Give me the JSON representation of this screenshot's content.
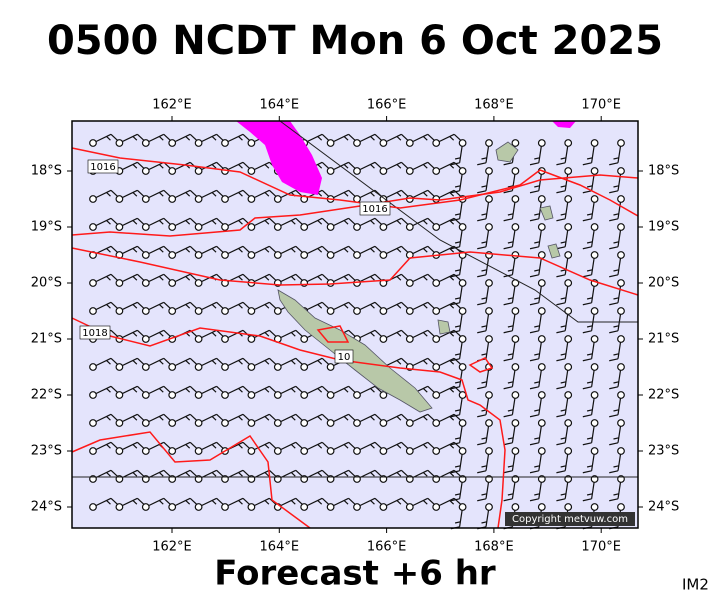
{
  "title": "0500 NCDT Mon 6 Oct 2025",
  "longitude_labels": [
    "162°E",
    "164°E",
    "166°E",
    "168°E",
    "170°E"
  ],
  "latitude_labels": [
    "18°S",
    "19°S",
    "20°S",
    "21°S",
    "22°S",
    "23°S",
    "24°S"
  ],
  "isobar_labels": [
    "1016",
    "1016",
    "1018",
    "10"
  ],
  "copyright": "Copyright metvuw.com",
  "forecast": "Forecast +6 hr",
  "image_id": "IM2"
}
